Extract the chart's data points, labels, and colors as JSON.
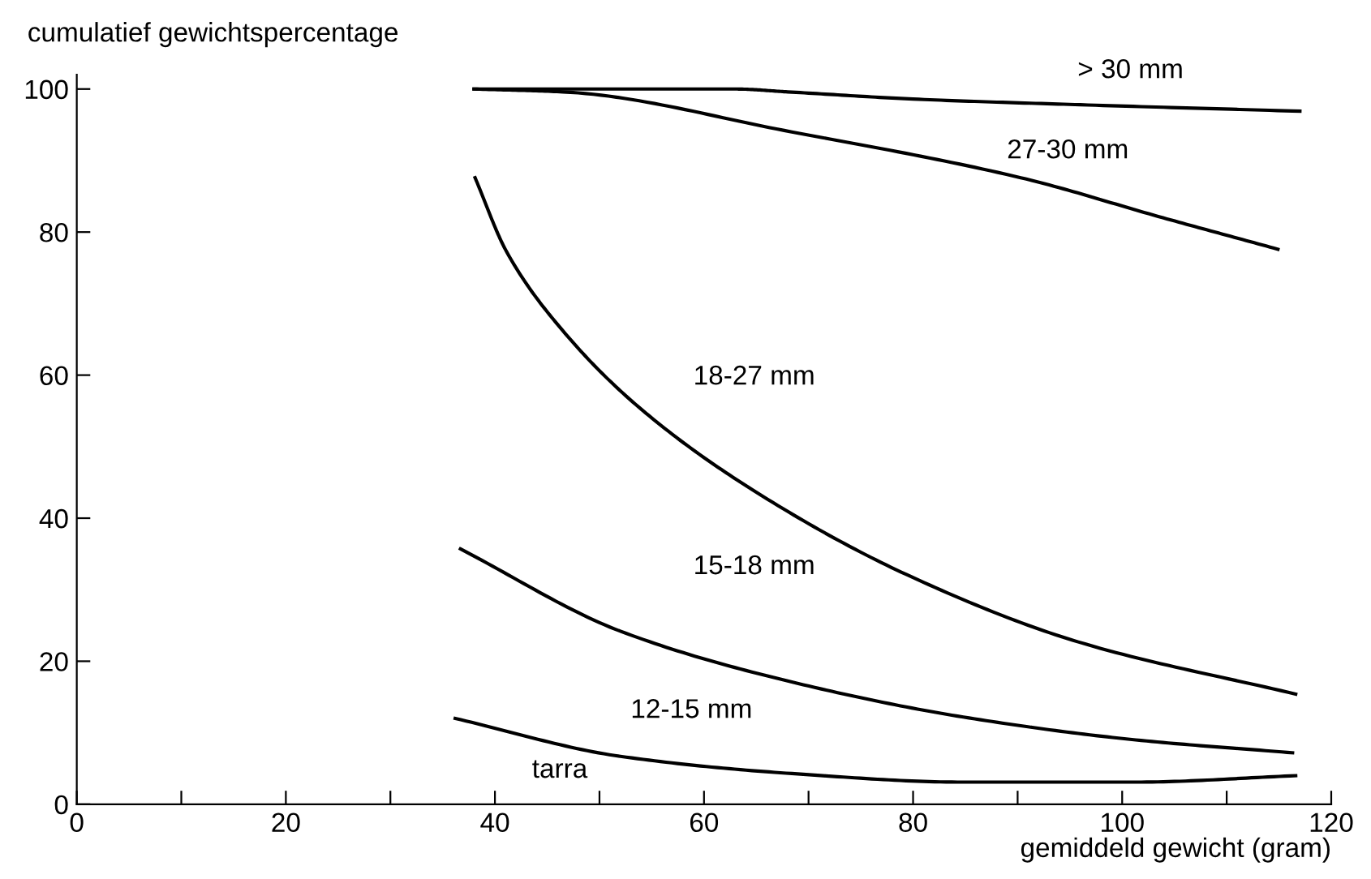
{
  "chart_data": {
    "type": "line",
    "xlabel": "gemiddeld gewicht (gram)",
    "ylabel": "cumulatief gewichtspercentage",
    "xlim": [
      0,
      120
    ],
    "ylim": [
      0,
      102
    ],
    "xticks": [
      0,
      {
        "value": 10,
        "label": null
      },
      20,
      {
        "value": 30,
        "label": null
      },
      40,
      {
        "value": 50,
        "label": null
      },
      60,
      {
        "value": 70,
        "label": null
      },
      80,
      {
        "value": 90,
        "label": null
      },
      100,
      {
        "value": 110,
        "label": null
      },
      120
    ],
    "yticks": [
      0,
      20,
      40,
      60,
      80,
      100
    ],
    "grid": false,
    "legend": false,
    "marker": "none",
    "line_style": "solid",
    "series": [
      {
        "color": "#000000",
        "x": [
          38,
          63,
          68,
          80,
          96,
          117
        ],
        "values": [
          100,
          100,
          99.6,
          98.6,
          97.8,
          96.9
        ]
      },
      {
        "color": "#000000",
        "x": [
          38,
          46.5,
          68.4,
          90.3,
          103.9,
          114.9
        ],
        "values": [
          100,
          99.6,
          94,
          87.6,
          82,
          77.6
        ]
      },
      {
        "color": "#000000",
        "x": [
          38.1,
          41.1,
          46.5,
          53.7,
          64.6,
          79.4,
          95.8,
          116.6
        ],
        "values": [
          87.6,
          77.3,
          66.2,
          55.6,
          44,
          32.1,
          22.7,
          15.4
        ]
      },
      {
        "color": "#000000",
        "x": [
          36.7,
          52,
          68.4,
          84.8,
          101.3,
          116.3
        ],
        "values": [
          35.7,
          24.2,
          17.1,
          12.2,
          9,
          7.2
        ]
      },
      {
        "color": "#000000",
        "x": [
          36.2,
          52,
          68.4,
          84.8,
          101.3,
          116.6
        ],
        "values": [
          12,
          6.7,
          4.3,
          3.1,
          3.1,
          4
        ]
      }
    ],
    "annotations": [
      "> 30 mm",
      "27-30 mm",
      "18-27 mm",
      "15-18 mm",
      "12-15 mm",
      "tarra"
    ]
  }
}
